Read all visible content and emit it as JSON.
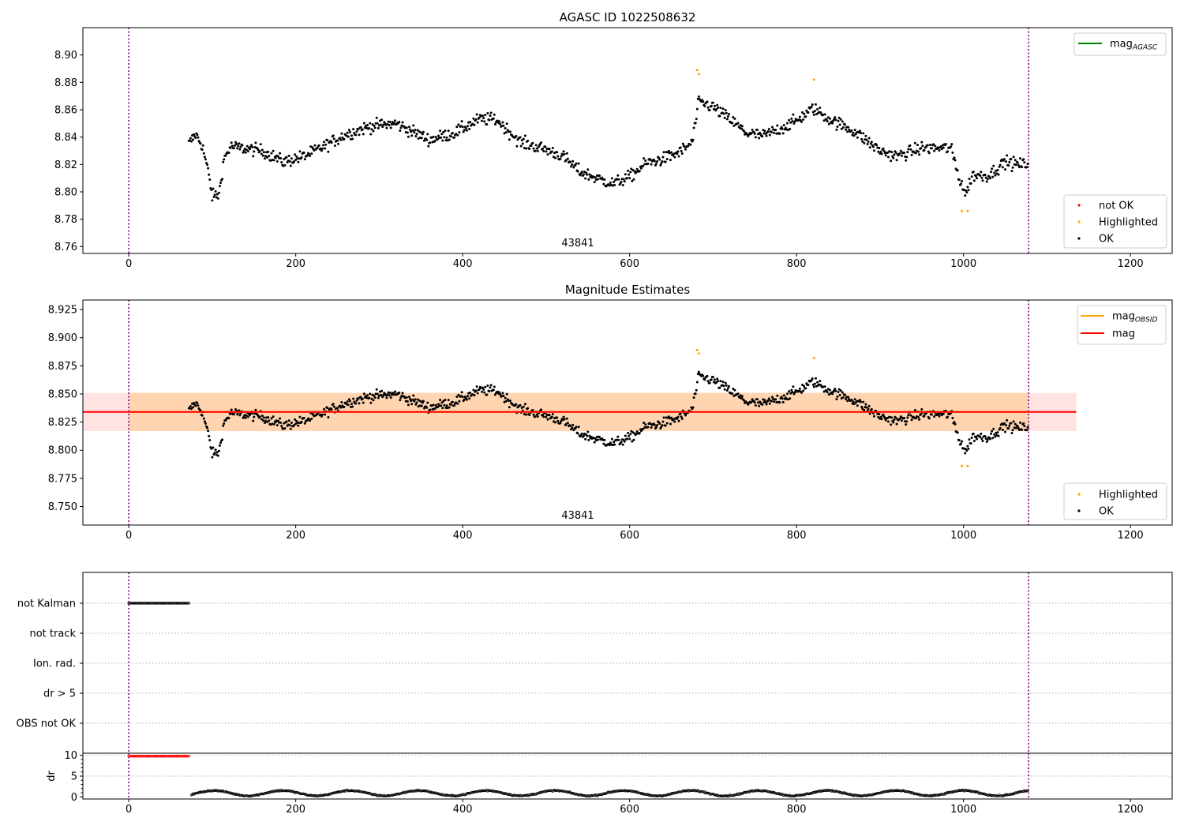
{
  "chart_data": [
    {
      "type": "scatter",
      "title": "AGASC ID 1022508632",
      "xlim": [
        -55,
        1250
      ],
      "ylim": [
        8.755,
        8.92
      ],
      "x_ticks": [
        0,
        200,
        400,
        600,
        800,
        1000,
        1200
      ],
      "y_ticks": [
        8.76,
        8.78,
        8.8,
        8.82,
        8.84,
        8.86,
        8.88,
        8.9
      ],
      "y_tick_labels": [
        "8.76",
        "8.78",
        "8.80",
        "8.82",
        "8.84",
        "8.86",
        "8.88",
        "8.90"
      ],
      "obsid_boundaries": [
        0,
        1078
      ],
      "obsid_label": "43841",
      "obsid_label_x": 539,
      "legend_upper": [
        {
          "label": "mag",
          "sub": "AGASC",
          "color": "#008000"
        }
      ],
      "legend_lower": [
        {
          "label": "not OK",
          "color": "#ff0000"
        },
        {
          "label": "Highlighted",
          "color": "#ffa500"
        },
        {
          "label": "OK",
          "color": "#000000"
        }
      ],
      "series": [
        {
          "name": "OK",
          "x_range": [
            72,
            1077
          ],
          "anchors": [
            [
              72,
              8.835
            ],
            [
              80,
              8.842
            ],
            [
              88,
              8.834
            ],
            [
              95,
              8.815
            ],
            [
              100,
              8.797
            ],
            [
              108,
              8.798
            ],
            [
              114,
              8.824
            ],
            [
              122,
              8.833
            ],
            [
              160,
              8.83
            ],
            [
              185,
              8.822
            ],
            [
              210,
              8.826
            ],
            [
              230,
              8.832
            ],
            [
              260,
              8.842
            ],
            [
              290,
              8.848
            ],
            [
              320,
              8.85
            ],
            [
              360,
              8.838
            ],
            [
              390,
              8.843
            ],
            [
              420,
              8.853
            ],
            [
              440,
              8.853
            ],
            [
              470,
              8.836
            ],
            [
              500,
              8.831
            ],
            [
              520,
              8.826
            ],
            [
              540,
              8.815
            ],
            [
              560,
              8.81
            ],
            [
              580,
              8.806
            ],
            [
              600,
              8.811
            ],
            [
              620,
              8.821
            ],
            [
              640,
              8.824
            ],
            [
              660,
              8.829
            ],
            [
              675,
              8.836
            ],
            [
              683,
              8.866
            ],
            [
              700,
              8.862
            ],
            [
              720,
              8.853
            ],
            [
              740,
              8.843
            ],
            [
              760,
              8.841
            ],
            [
              780,
              8.846
            ],
            [
              800,
              8.852
            ],
            [
              820,
              8.861
            ],
            [
              840,
              8.853
            ],
            [
              870,
              8.844
            ],
            [
              900,
              8.83
            ],
            [
              920,
              8.826
            ],
            [
              950,
              8.832
            ],
            [
              985,
              8.832
            ],
            [
              995,
              8.81
            ],
            [
              1003,
              8.798
            ],
            [
              1010,
              8.812
            ],
            [
              1030,
              8.812
            ],
            [
              1050,
              8.822
            ],
            [
              1065,
              8.82
            ],
            [
              1077,
              8.82
            ]
          ],
          "spread": 0.006
        },
        {
          "name": "Highlighted",
          "points": [
            [
              681,
              8.889
            ],
            [
              683,
              8.886
            ],
            [
              821,
              8.882
            ],
            [
              998,
              8.786
            ],
            [
              1005,
              8.786
            ]
          ]
        }
      ]
    },
    {
      "type": "scatter",
      "title": "Magnitude Estimates",
      "xlim": [
        -55,
        1250
      ],
      "ylim": [
        8.7335,
        8.9335
      ],
      "x_ticks": [
        0,
        200,
        400,
        600,
        800,
        1000,
        1200
      ],
      "y_ticks": [
        8.75,
        8.775,
        8.8,
        8.825,
        8.85,
        8.875,
        8.9,
        8.925
      ],
      "y_tick_labels": [
        "8.750",
        "8.775",
        "8.800",
        "8.825",
        "8.850",
        "8.875",
        "8.900",
        "8.925"
      ],
      "obsid_boundaries": [
        0,
        1078
      ],
      "obsid_label": "43841",
      "obsid_label_x": 539,
      "mag_agasc": {
        "value": 8.834,
        "band": [
          8.817,
          8.851
        ],
        "x_range": [
          -55,
          1135
        ],
        "color": "#ff0000"
      },
      "mag_obsid": {
        "value": 8.834,
        "band": [
          8.817,
          8.851
        ],
        "x_range": [
          0,
          1078
        ],
        "color": "#ffa500"
      },
      "legend_upper": [
        {
          "label": "mag",
          "sub": "OBSID",
          "color": "#ffa500"
        },
        {
          "label": "mag",
          "sub": "",
          "color": "#ff0000"
        }
      ],
      "legend_lower": [
        {
          "label": "Highlighted",
          "color": "#ffa500"
        },
        {
          "label": "OK",
          "color": "#000000"
        }
      ]
    },
    {
      "type": "scatter",
      "xlim": [
        -55,
        1250
      ],
      "flag_labels": [
        "not Kalman",
        "not track",
        "Ion. rad.",
        "dr > 5",
        "OBS not OK"
      ],
      "flags": {
        "not Kalman": [
          0,
          72
        ]
      },
      "obsid_boundaries": [
        0,
        1078
      ]
    },
    {
      "type": "scatter",
      "xlim": [
        -55,
        1250
      ],
      "ylim": [
        -0.5,
        10.5
      ],
      "ylabel": "dr",
      "y_ticks": [
        0,
        5,
        10
      ],
      "y_tick_labels": [
        "0",
        "5",
        "10"
      ],
      "x_ticks": [
        0,
        200,
        400,
        600,
        800,
        1000,
        1200
      ],
      "obsid_boundaries": [
        0,
        1078
      ],
      "series": [
        {
          "name": "dr > 5",
          "x_range": [
            0,
            72
          ],
          "value": 9.8,
          "color": "#ff0000"
        },
        {
          "name": "dr",
          "x_range": [
            75,
            1077
          ],
          "mean": 0.9,
          "amplitude": 0.7,
          "color": "#000000"
        }
      ]
    }
  ]
}
